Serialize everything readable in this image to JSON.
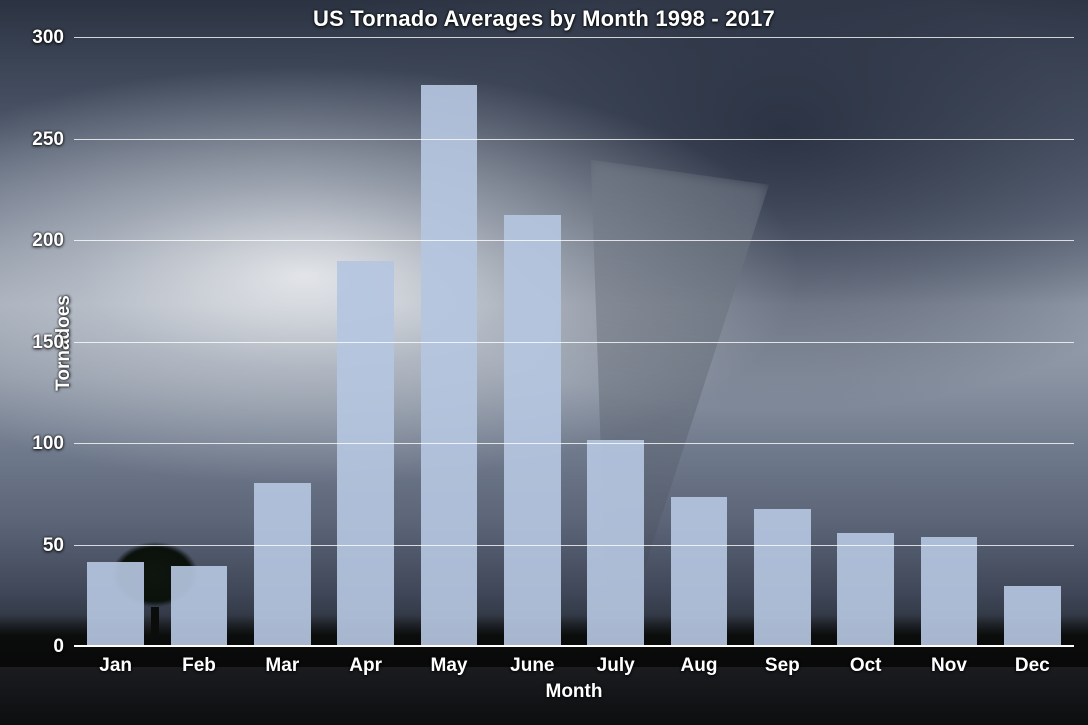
{
  "chart": {
    "type": "bar",
    "title": "US Tornado Averages by Month 1998 - 2017",
    "title_fontsize": 22,
    "title_color": "#ffffff",
    "xlabel": "Month",
    "ylabel": "Tornadoes",
    "label_fontsize": 19,
    "label_color": "#ffffff",
    "categories": [
      "Jan",
      "Feb",
      "Mar",
      "Apr",
      "May",
      "June",
      "July",
      "Aug",
      "Sep",
      "Oct",
      "Nov",
      "Dec"
    ],
    "values": [
      42,
      40,
      81,
      190,
      277,
      213,
      102,
      74,
      68,
      56,
      54,
      30
    ],
    "bar_color": "#b5c5df",
    "bar_opacity": 0.92,
    "bar_width": 0.68,
    "ylim": [
      0,
      300
    ],
    "ytick_step": 50,
    "grid_color": "#ffffff",
    "grid_opacity": 0.78,
    "baseline_color": "#ffffff",
    "tick_fontsize": 19,
    "tick_color": "#ffffff",
    "font_family": "Helvetica Neue, Helvetica, Arial, sans-serif",
    "text_shadow": "0 1px 3px rgba(0,0,0,0.85)",
    "background_description": "photographic storm-cloud / tornado image (dark blue-gray sky, bright cloud patch upper-left, funnel center-right, silhouetted tree lower-left, dark ground strip)",
    "background_dominant_colors": [
      "#2b3342",
      "#3a4354",
      "#6c7688",
      "#9aa3b0",
      "#1a1c1f",
      "#0d0e10"
    ]
  }
}
